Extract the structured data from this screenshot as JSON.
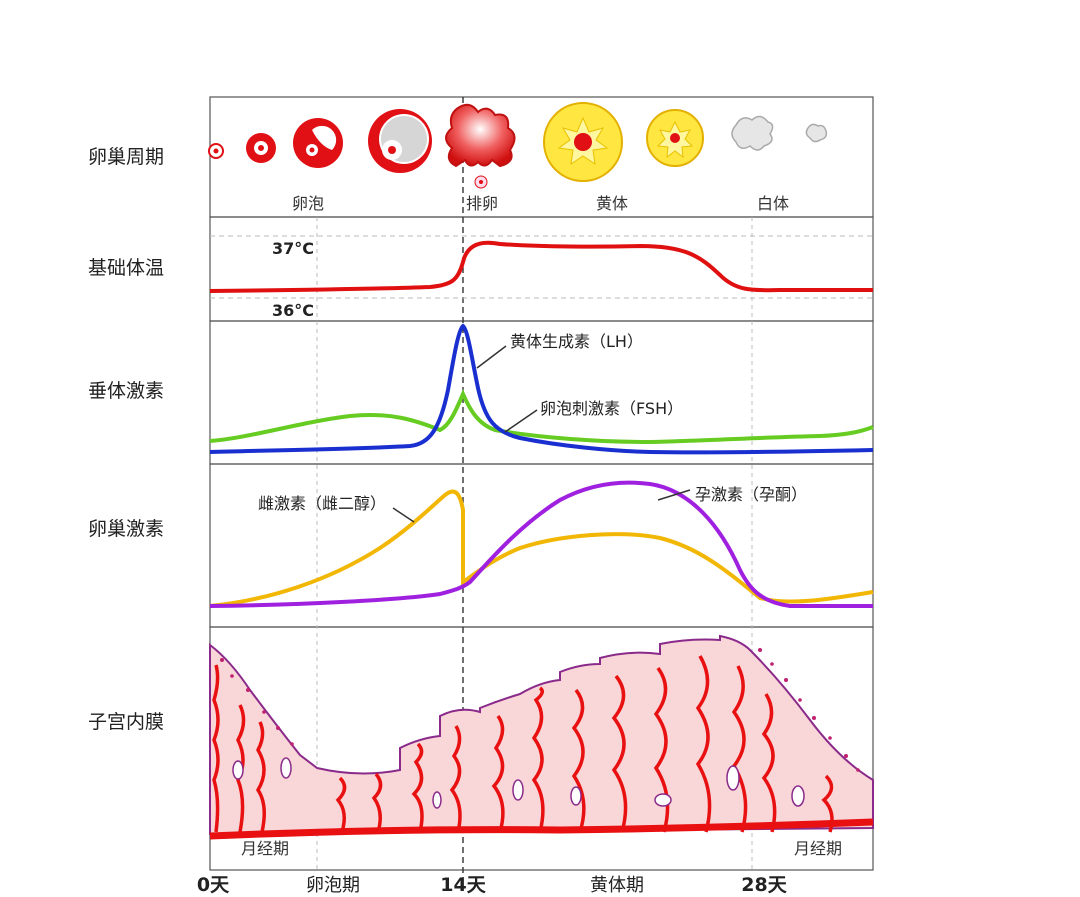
{
  "rows": {
    "ovarian_cycle": "卵巢周期",
    "basal_body_temperature": "基础体温",
    "pituitary_hormones": "垂体激素",
    "ovarian_hormones": "卵巢激素",
    "endometrium": "子宫内膜"
  },
  "ovary_stages": {
    "follicle": "卵泡",
    "ovulation": "排卵",
    "corpus_luteum": "黄体",
    "corpus_albicans": "白体"
  },
  "temperature": {
    "high": "37°C",
    "low": "36°C"
  },
  "hormone_labels": {
    "lh": "黄体生成素（LH）",
    "fsh": "卵泡刺激素（FSH）",
    "estrogen": "雌激素（雌二醇）",
    "progesterone": "孕激素（孕酮）"
  },
  "menses": {
    "start": "月经期",
    "end": "月经期"
  },
  "axis": {
    "day0": "0天",
    "follicular_phase": "卵泡期",
    "day14": "14天",
    "luteal_phase": "黄体期",
    "day28": "28天"
  },
  "colors": {
    "temperature": "#e01010",
    "lh": "#1a2fd0",
    "fsh": "#66cc22",
    "estrogen": "#f2b705",
    "progesterone": "#a020e0",
    "endometrium_fill": "#f9d6d8",
    "endometrium_outline": "#8a2a8a",
    "vessel": "#e81010",
    "ovary_red": "#e01015",
    "corpus_luteum_yellow": "#ffe640"
  }
}
